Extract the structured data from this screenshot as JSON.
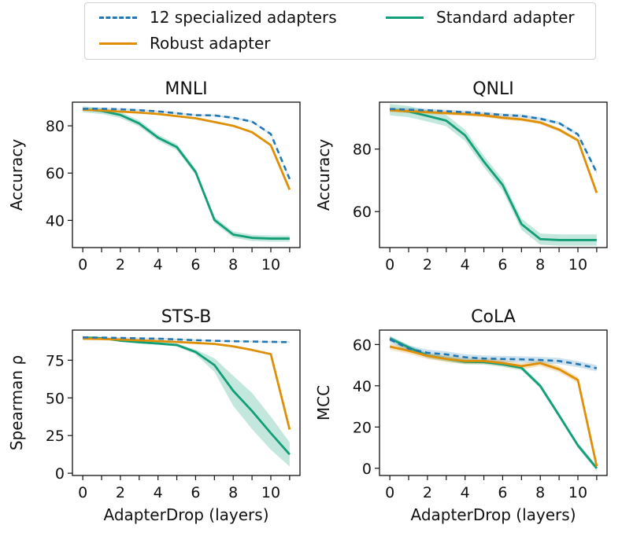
{
  "legend": {
    "items": [
      {
        "label": "12 specialized adapters",
        "color": "#1f77b4",
        "dash": true
      },
      {
        "label": "Standard adapter",
        "color": "#129e76",
        "dash": false
      },
      {
        "label": "Robust adapter",
        "color": "#de8f05",
        "dash": false
      }
    ]
  },
  "chart_data": [
    {
      "type": "line",
      "title": "MNLI",
      "xlabel": "",
      "ylabel": "Accuracy",
      "x": [
        0,
        1,
        2,
        3,
        4,
        5,
        6,
        7,
        8,
        9,
        10,
        11
      ],
      "xticks": [
        0,
        2,
        4,
        6,
        8,
        10
      ],
      "yticks": [
        40,
        60,
        80
      ],
      "xlim": [
        -0.55,
        11.55
      ],
      "ylim": [
        28.5,
        90
      ],
      "series": [
        {
          "name": "12 specialized adapters",
          "values": [
            87.2,
            87.2,
            87.0,
            86.6,
            86.1,
            85.3,
            84.5,
            84.4,
            83.4,
            81.8,
            76.5,
            57.5
          ],
          "band": 0.4
        },
        {
          "name": "Robust adapter",
          "values": [
            86.8,
            86.5,
            86.0,
            85.6,
            85.0,
            84.1,
            83.2,
            81.6,
            80.0,
            77.3,
            71.8,
            53.0
          ],
          "band": 0.4
        },
        {
          "name": "Standard adapter",
          "values": [
            87.0,
            86.3,
            84.6,
            81.0,
            75.0,
            71.0,
            60.5,
            40.2,
            34.0,
            32.6,
            32.3,
            32.3
          ],
          "band": 1.3
        }
      ]
    },
    {
      "type": "line",
      "title": "QNLI",
      "xlabel": "",
      "ylabel": "Accuracy",
      "x": [
        0,
        1,
        2,
        3,
        4,
        5,
        6,
        7,
        8,
        9,
        10,
        11
      ],
      "xticks": [
        0,
        2,
        4,
        6,
        8,
        10
      ],
      "yticks": [
        60,
        80
      ],
      "xlim": [
        -0.55,
        11.55
      ],
      "ylim": [
        48.5,
        95
      ],
      "series": [
        {
          "name": "12 specialized adapters",
          "values": [
            92.8,
            92.6,
            92.4,
            92.1,
            91.8,
            91.4,
            90.9,
            90.6,
            89.7,
            88.3,
            84.7,
            72.5
          ],
          "band": 0.5
        },
        {
          "name": "Robust adapter",
          "values": [
            92.4,
            92.1,
            91.8,
            91.5,
            91.2,
            90.8,
            90.0,
            89.5,
            88.5,
            86.2,
            82.8,
            66.0
          ],
          "band": 0.6
        },
        {
          "name": "Standard adapter",
          "values": [
            92.6,
            92.0,
            90.6,
            89.1,
            84.4,
            76.0,
            68.5,
            56.0,
            51.2,
            50.9,
            50.9,
            50.9
          ],
          "band": 1.8
        }
      ]
    },
    {
      "type": "line",
      "title": "STS-B",
      "xlabel": "AdapterDrop (layers)",
      "ylabel": "Spearman ρ",
      "x": [
        0,
        1,
        2,
        3,
        4,
        5,
        6,
        7,
        8,
        9,
        10,
        11
      ],
      "xticks": [
        0,
        2,
        4,
        6,
        8,
        10
      ],
      "yticks": [
        0,
        25,
        50,
        75
      ],
      "xlim": [
        -0.55,
        11.55
      ],
      "ylim": [
        -1.5,
        95
      ],
      "series": [
        {
          "name": "12 specialized adapters",
          "values": [
            90.2,
            90.0,
            89.8,
            89.5,
            89.3,
            88.8,
            88.3,
            87.9,
            87.6,
            87.4,
            87.2,
            87.0
          ],
          "band": 0.5
        },
        {
          "name": "Robust adapter",
          "values": [
            89.3,
            89.1,
            88.7,
            88.2,
            87.7,
            87.1,
            86.5,
            85.8,
            84.2,
            81.8,
            79.0,
            29.0
          ],
          "band": 0.6
        },
        {
          "name": "Standard adapter",
          "values": [
            90.1,
            89.6,
            88.0,
            86.9,
            86.1,
            85.1,
            80.5,
            71.8,
            54.7,
            41.3,
            26.6,
            12.5
          ],
          "band": [
            0.6,
            0.6,
            0.8,
            0.8,
            0.8,
            1.0,
            1.6,
            4.5,
            10.0,
            12.0,
            11.0,
            8.0
          ]
        }
      ]
    },
    {
      "type": "line",
      "title": "CoLA",
      "xlabel": "AdapterDrop (layers)",
      "ylabel": "MCC",
      "x": [
        0,
        1,
        2,
        3,
        4,
        5,
        6,
        7,
        8,
        9,
        10,
        11
      ],
      "xticks": [
        0,
        2,
        4,
        6,
        8,
        10
      ],
      "yticks": [
        0,
        20,
        40,
        60
      ],
      "xlim": [
        -0.55,
        11.55
      ],
      "ylim": [
        -3.5,
        67
      ],
      "series": [
        {
          "name": "12 specialized adapters",
          "values": [
            62.5,
            58.0,
            56.0,
            55.2,
            53.8,
            53.2,
            53.0,
            52.8,
            52.5,
            52.0,
            50.5,
            48.5
          ],
          "band": 1.5
        },
        {
          "name": "Robust adapter",
          "values": [
            59.0,
            57.0,
            54.5,
            53.0,
            52.0,
            52.0,
            51.0,
            49.5,
            51.0,
            48.0,
            42.8,
            1.0
          ],
          "band": 1.5
        },
        {
          "name": "Standard adapter",
          "values": [
            63.0,
            58.6,
            54.6,
            53.0,
            51.6,
            51.5,
            50.4,
            48.7,
            39.9,
            25.6,
            11.1,
            0.0
          ],
          "band": 1.2
        }
      ]
    }
  ]
}
